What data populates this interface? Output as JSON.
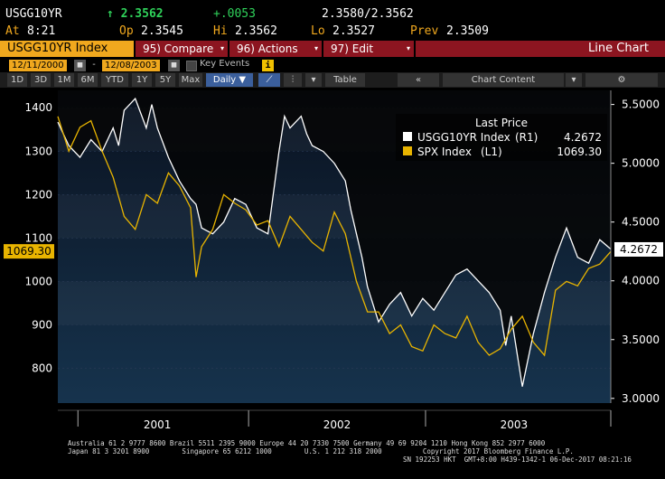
{
  "quote": {
    "ticker": "USGG10YR",
    "last": "↑ 2.3562",
    "change": "+.0053",
    "bid_ask": "2.3580/2.3562",
    "time_label": "At",
    "time": "8:21",
    "open_label": "Op",
    "open": "2.3545",
    "high_label": "Hi",
    "high": "2.3562",
    "low_label": "Lo",
    "low": "2.3527",
    "prev_label": "Prev",
    "prev": "2.3509"
  },
  "menu": {
    "security": "USGG10YR Index",
    "compare_num": "95)",
    "compare": "Compare",
    "actions_num": "96)",
    "actions": "Actions",
    "edit_num": "97)",
    "edit": "Edit",
    "chart_type": "Line Chart"
  },
  "dates": {
    "start": "12/11/2000",
    "dash": "-",
    "end": "12/08/2003",
    "key_events": "Key Events"
  },
  "toolbar": {
    "periods": [
      "1D",
      "3D",
      "1M",
      "6M",
      "YTD",
      "1Y",
      "5Y",
      "Max"
    ],
    "frequency": "Daily ▼",
    "table": "Table",
    "chart_content": "Chart Content"
  },
  "colors": {
    "usgg": "#ffffff",
    "spx": "#e8b400",
    "menu_red": "#8c1520",
    "amber": "#f0a81e"
  },
  "chart_data": {
    "type": "line",
    "legend_title": "Last Price",
    "legend_placement": "top-right",
    "x_labels": [
      "2001",
      "2002",
      "2003"
    ],
    "left_axis": {
      "ticks": [
        800,
        900,
        1000,
        1100,
        1200,
        1300,
        1400
      ],
      "range": [
        720,
        1440
      ]
    },
    "right_axis": {
      "ticks": [
        "3.0000",
        "3.5000",
        "4.0000",
        "4.5000",
        "5.0000",
        "5.5000"
      ],
      "range": [
        2.96,
        5.62
      ]
    },
    "series": [
      {
        "name": "USGG10YR Index",
        "axis_label": "(R1)",
        "last": "4.2672",
        "axis": "right",
        "x": [
          0.0,
          0.02,
          0.04,
          0.06,
          0.08,
          0.1,
          0.11,
          0.12,
          0.14,
          0.16,
          0.17,
          0.18,
          0.2,
          0.22,
          0.24,
          0.25,
          0.26,
          0.28,
          0.3,
          0.32,
          0.34,
          0.36,
          0.38,
          0.4,
          0.41,
          0.42,
          0.44,
          0.45,
          0.46,
          0.48,
          0.5,
          0.52,
          0.53,
          0.54,
          0.55,
          0.56,
          0.58,
          0.6,
          0.62,
          0.64,
          0.66,
          0.68,
          0.7,
          0.72,
          0.74,
          0.76,
          0.78,
          0.8,
          0.81,
          0.82,
          0.84,
          0.86,
          0.88,
          0.9,
          0.92,
          0.94,
          0.96,
          0.98,
          1.0
        ],
        "values": [
          5.35,
          5.15,
          5.05,
          5.2,
          5.1,
          5.3,
          5.15,
          5.45,
          5.55,
          5.3,
          5.5,
          5.3,
          5.05,
          4.85,
          4.7,
          4.65,
          4.45,
          4.4,
          4.5,
          4.7,
          4.65,
          4.45,
          4.4,
          5.1,
          5.4,
          5.3,
          5.4,
          5.25,
          5.15,
          5.1,
          5.0,
          4.85,
          4.6,
          4.4,
          4.2,
          3.95,
          3.65,
          3.8,
          3.9,
          3.7,
          3.85,
          3.75,
          3.9,
          4.05,
          4.1,
          4.0,
          3.9,
          3.75,
          3.45,
          3.7,
          3.1,
          3.55,
          3.9,
          4.2,
          4.45,
          4.2,
          4.15,
          4.35,
          4.27
        ]
      },
      {
        "name": "SPX Index",
        "axis_label": "(L1)",
        "last": "1069.30",
        "axis": "left",
        "x": [
          0.0,
          0.02,
          0.04,
          0.06,
          0.08,
          0.1,
          0.12,
          0.14,
          0.16,
          0.18,
          0.2,
          0.22,
          0.24,
          0.25,
          0.26,
          0.28,
          0.3,
          0.32,
          0.34,
          0.36,
          0.38,
          0.4,
          0.42,
          0.44,
          0.46,
          0.48,
          0.5,
          0.52,
          0.54,
          0.56,
          0.58,
          0.6,
          0.62,
          0.64,
          0.66,
          0.68,
          0.7,
          0.72,
          0.74,
          0.76,
          0.78,
          0.8,
          0.82,
          0.84,
          0.86,
          0.88,
          0.9,
          0.92,
          0.94,
          0.96,
          0.98,
          1.0
        ],
        "values": [
          1380,
          1300,
          1355,
          1370,
          1300,
          1240,
          1150,
          1120,
          1200,
          1180,
          1250,
          1220,
          1170,
          1010,
          1080,
          1120,
          1200,
          1180,
          1165,
          1130,
          1140,
          1080,
          1150,
          1120,
          1090,
          1070,
          1160,
          1110,
          1000,
          930,
          930,
          880,
          900,
          850,
          840,
          900,
          880,
          870,
          920,
          860,
          830,
          845,
          890,
          920,
          860,
          830,
          980,
          1000,
          990,
          1030,
          1040,
          1069
        ]
      }
    ]
  },
  "footer": {
    "line1": "Australia 61 2 9777 8600 Brazil 5511 2395 9000 Europe 44 20 7330 7500 Germany 49 69 9204 1210 Hong Kong 852 2977 6000",
    "line2": "Japan 81 3 3201 8900        Singapore 65 6212 1000        U.S. 1 212 318 2000          Copyright 2017 Bloomberg Finance L.P.",
    "line3": "SN 192253 HKT  GMT+8:00 H439-1342-1 06-Dec-2017 08:21:16"
  }
}
